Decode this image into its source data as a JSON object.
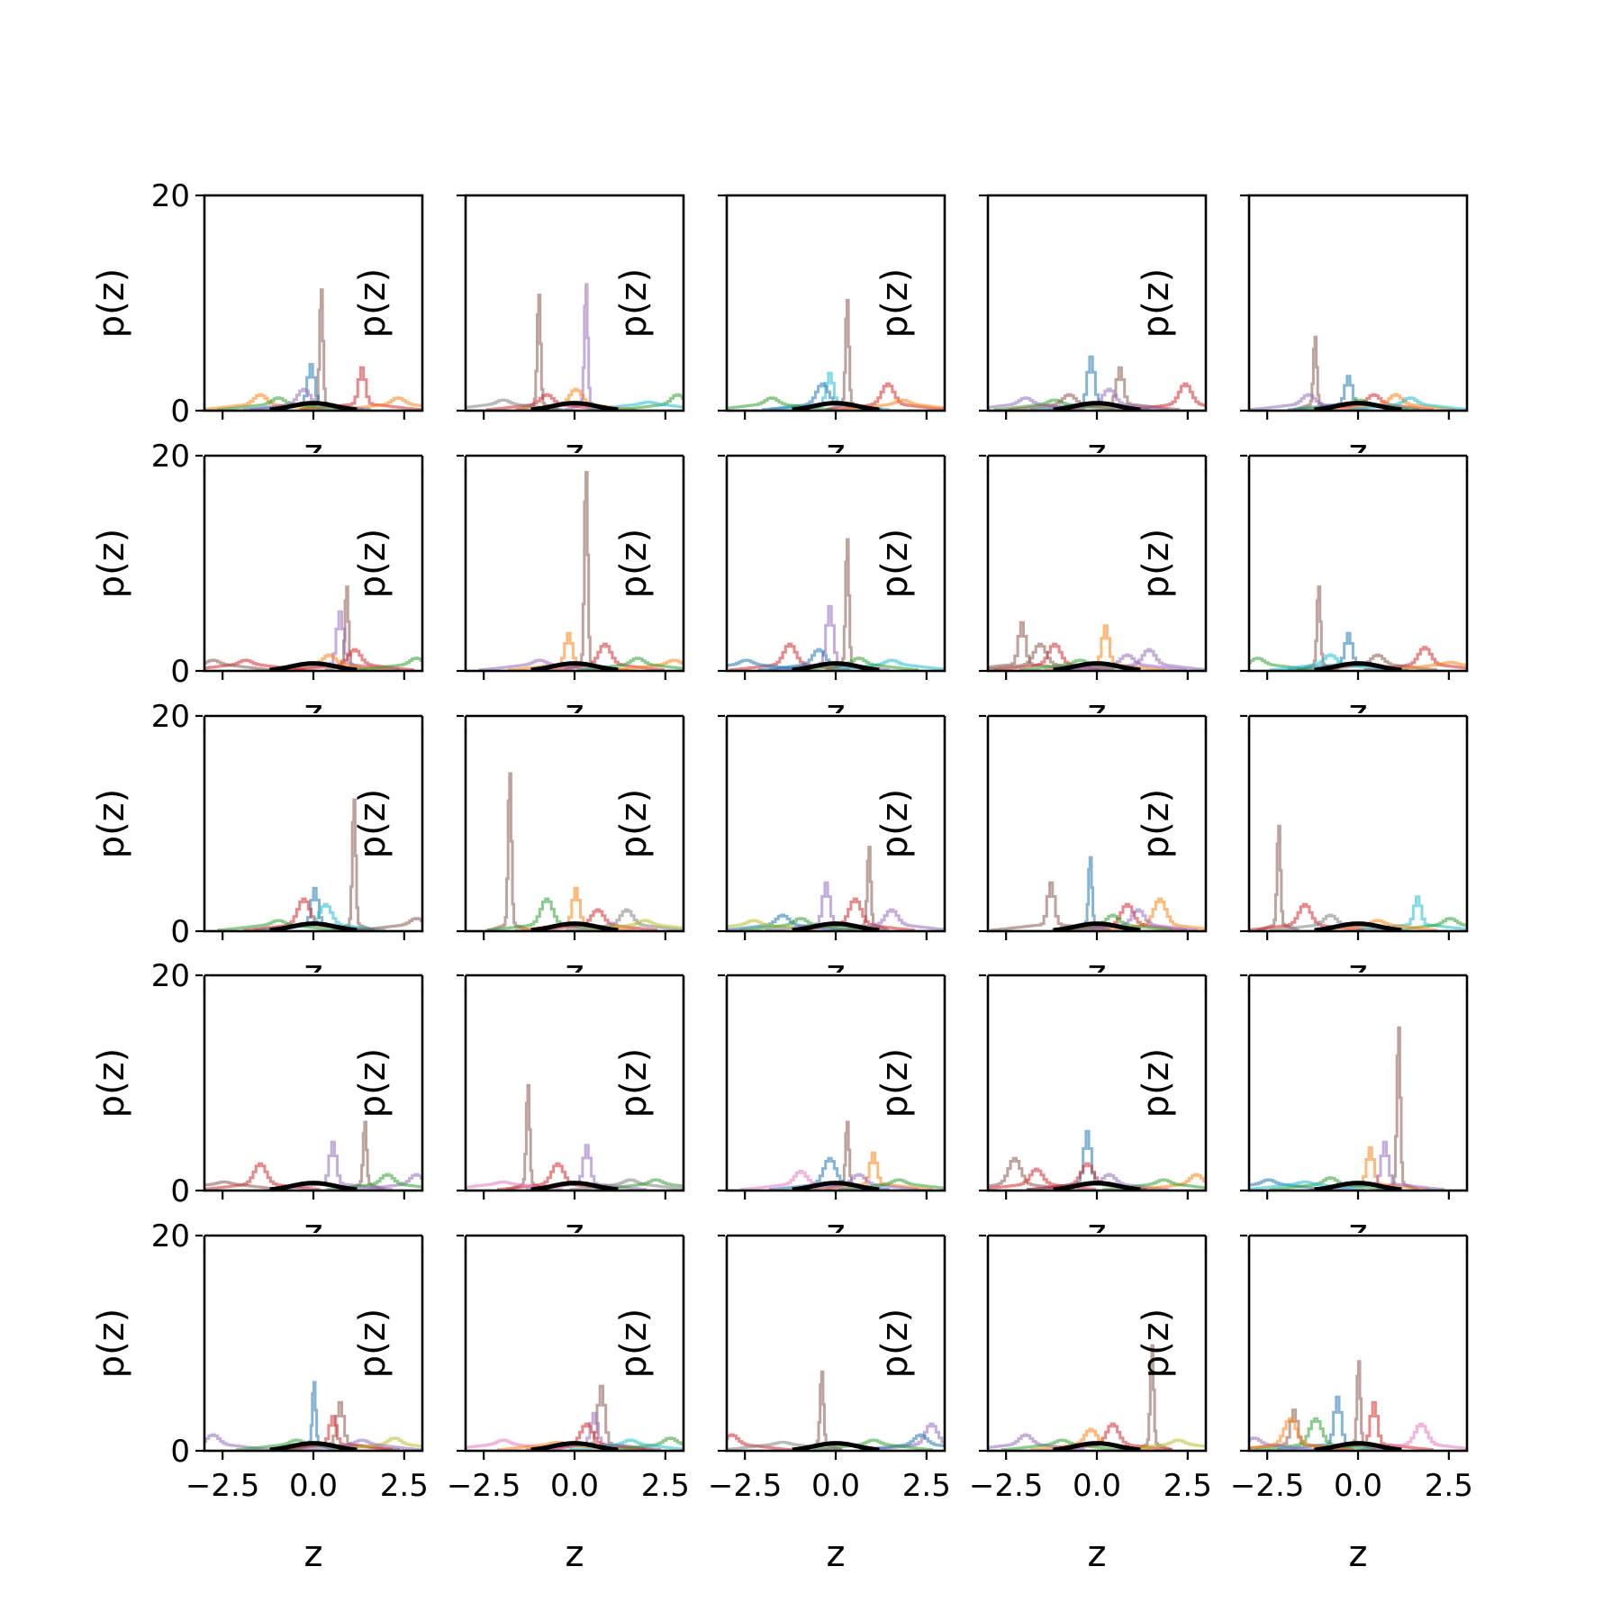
{
  "chart_data": {
    "type": "line",
    "layout": "5x5 grid of step histograms",
    "xlabel": "z",
    "ylabel": "p(z)",
    "xlim": [
      -3.0,
      3.0
    ],
    "ylim": [
      0,
      20
    ],
    "xticks": [
      -2.5,
      0.0,
      2.5
    ],
    "xtick_labels": [
      "−2.5",
      "0.0",
      "2.5"
    ],
    "yticks": [
      0,
      20
    ],
    "ytick_labels": [
      "0",
      "20"
    ],
    "grid": false,
    "legend": "none",
    "palette": [
      "#1f77b4",
      "#ff7f0e",
      "#2ca02c",
      "#d62728",
      "#9467bd",
      "#8c564b",
      "#e377c2",
      "#7f7f7f",
      "#bcbd22",
      "#17becf"
    ],
    "reference_color": "#000000",
    "panels": [
      {
        "peaks": [
          {
            "x": 0.2,
            "h": 11.5,
            "c": 5
          },
          {
            "x": -0.1,
            "h": 4.3,
            "c": 0
          },
          {
            "x": 1.3,
            "h": 4.0,
            "c": 3
          },
          {
            "x": 2.3,
            "h": 1.2,
            "c": 1
          },
          {
            "x": -1.5,
            "h": 1.5,
            "c": 1
          },
          {
            "x": -1.0,
            "h": 1.2,
            "c": 2
          },
          {
            "x": -0.3,
            "h": 2.0,
            "c": 4
          }
        ]
      },
      {
        "peaks": [
          {
            "x": -1.0,
            "h": 11.0,
            "c": 5
          },
          {
            "x": 0.3,
            "h": 12.0,
            "c": 4
          },
          {
            "x": 0.0,
            "h": 2.0,
            "c": 1
          },
          {
            "x": -0.8,
            "h": 1.5,
            "c": 3
          },
          {
            "x": 2.8,
            "h": 1.5,
            "c": 2
          },
          {
            "x": -2.0,
            "h": 1.0,
            "c": 7
          },
          {
            "x": 2.0,
            "h": 0.8,
            "c": 9
          }
        ]
      },
      {
        "peaks": [
          {
            "x": 0.3,
            "h": 10.5,
            "c": 5
          },
          {
            "x": -0.2,
            "h": 3.5,
            "c": 9
          },
          {
            "x": -0.4,
            "h": 2.5,
            "c": 0
          },
          {
            "x": 1.4,
            "h": 2.5,
            "c": 3
          },
          {
            "x": -1.8,
            "h": 1.2,
            "c": 2
          },
          {
            "x": 1.8,
            "h": 1.0,
            "c": 1
          }
        ]
      },
      {
        "peaks": [
          {
            "x": -0.2,
            "h": 5.0,
            "c": 0
          },
          {
            "x": 0.6,
            "h": 4.0,
            "c": 5
          },
          {
            "x": 2.4,
            "h": 2.5,
            "c": 3
          },
          {
            "x": 0.3,
            "h": 2.0,
            "c": 4
          },
          {
            "x": -2.0,
            "h": 1.2,
            "c": 4
          },
          {
            "x": -1.2,
            "h": 1.0,
            "c": 2
          },
          {
            "x": -0.8,
            "h": 1.5,
            "c": 5
          }
        ]
      },
      {
        "peaks": [
          {
            "x": -1.2,
            "h": 7.0,
            "c": 5
          },
          {
            "x": -0.3,
            "h": 3.2,
            "c": 0
          },
          {
            "x": -1.4,
            "h": 1.5,
            "c": 4
          },
          {
            "x": 0.4,
            "h": 1.5,
            "c": 3
          },
          {
            "x": 1.0,
            "h": 1.5,
            "c": 1
          },
          {
            "x": 1.4,
            "h": 1.2,
            "c": 9
          },
          {
            "x": 0.0,
            "h": 1.0,
            "c": 2
          }
        ]
      },
      {
        "peaks": [
          {
            "x": 0.9,
            "h": 8.0,
            "c": 5
          },
          {
            "x": 0.7,
            "h": 5.5,
            "c": 4
          },
          {
            "x": 1.1,
            "h": 2.0,
            "c": 3
          },
          {
            "x": 0.4,
            "h": 1.5,
            "c": 1
          },
          {
            "x": -1.9,
            "h": 1.0,
            "c": 3
          },
          {
            "x": 2.8,
            "h": 1.2,
            "c": 2
          },
          {
            "x": -2.8,
            "h": 1.0,
            "c": 5
          }
        ]
      },
      {
        "peaks": [
          {
            "x": 0.3,
            "h": 19.5,
            "c": 5
          },
          {
            "x": -0.2,
            "h": 3.5,
            "c": 1
          },
          {
            "x": 0.8,
            "h": 2.5,
            "c": 3
          },
          {
            "x": 2.7,
            "h": 1.0,
            "c": 1
          },
          {
            "x": -1.0,
            "h": 1.0,
            "c": 4
          },
          {
            "x": 1.7,
            "h": 1.2,
            "c": 2
          }
        ]
      },
      {
        "peaks": [
          {
            "x": 0.3,
            "h": 12.5,
            "c": 5
          },
          {
            "x": -0.2,
            "h": 6.0,
            "c": 4
          },
          {
            "x": -1.3,
            "h": 2.5,
            "c": 3
          },
          {
            "x": -0.5,
            "h": 2.0,
            "c": 0
          },
          {
            "x": -2.5,
            "h": 1.0,
            "c": 0
          },
          {
            "x": 1.5,
            "h": 1.0,
            "c": 9
          },
          {
            "x": 0.6,
            "h": 1.2,
            "c": 2
          }
        ]
      },
      {
        "peaks": [
          {
            "x": 0.2,
            "h": 4.2,
            "c": 1
          },
          {
            "x": -2.1,
            "h": 4.5,
            "c": 5
          },
          {
            "x": -1.2,
            "h": 2.5,
            "c": 3
          },
          {
            "x": 1.4,
            "h": 2.0,
            "c": 4
          },
          {
            "x": -1.6,
            "h": 2.5,
            "c": 5
          },
          {
            "x": 0.8,
            "h": 1.5,
            "c": 4
          },
          {
            "x": -0.5,
            "h": 1.0,
            "c": 2
          }
        ]
      },
      {
        "peaks": [
          {
            "x": -1.1,
            "h": 8.0,
            "c": 5
          },
          {
            "x": -0.3,
            "h": 3.5,
            "c": 0
          },
          {
            "x": 1.8,
            "h": 2.2,
            "c": 3
          },
          {
            "x": 0.5,
            "h": 1.5,
            "c": 5
          },
          {
            "x": -2.8,
            "h": 1.2,
            "c": 2
          },
          {
            "x": -0.8,
            "h": 1.5,
            "c": 9
          },
          {
            "x": 2.5,
            "h": 0.8,
            "c": 1
          }
        ]
      },
      {
        "peaks": [
          {
            "x": 1.1,
            "h": 12.5,
            "c": 5
          },
          {
            "x": 0.0,
            "h": 4.0,
            "c": 0
          },
          {
            "x": -0.3,
            "h": 3.0,
            "c": 3
          },
          {
            "x": 0.3,
            "h": 2.5,
            "c": 9
          },
          {
            "x": 2.8,
            "h": 1.2,
            "c": 5
          },
          {
            "x": -1.0,
            "h": 1.0,
            "c": 2
          }
        ]
      },
      {
        "peaks": [
          {
            "x": -1.8,
            "h": 15.0,
            "c": 5
          },
          {
            "x": 0.0,
            "h": 4.0,
            "c": 1
          },
          {
            "x": -0.8,
            "h": 3.0,
            "c": 2
          },
          {
            "x": 0.6,
            "h": 2.0,
            "c": 3
          },
          {
            "x": 1.4,
            "h": 2.0,
            "c": 7
          },
          {
            "x": 1.9,
            "h": 1.0,
            "c": 8
          }
        ]
      },
      {
        "peaks": [
          {
            "x": 0.9,
            "h": 8.0,
            "c": 5
          },
          {
            "x": -0.3,
            "h": 4.5,
            "c": 4
          },
          {
            "x": 0.5,
            "h": 3.0,
            "c": 3
          },
          {
            "x": 1.5,
            "h": 2.0,
            "c": 4
          },
          {
            "x": -1.5,
            "h": 1.5,
            "c": 0
          },
          {
            "x": -2.3,
            "h": 1.0,
            "c": 8
          },
          {
            "x": -1.0,
            "h": 1.2,
            "c": 2
          }
        ]
      },
      {
        "peaks": [
          {
            "x": -0.2,
            "h": 7.0,
            "c": 0
          },
          {
            "x": -1.3,
            "h": 4.5,
            "c": 5
          },
          {
            "x": 1.7,
            "h": 3.0,
            "c": 1
          },
          {
            "x": 0.8,
            "h": 2.5,
            "c": 3
          },
          {
            "x": 1.1,
            "h": 2.0,
            "c": 4
          },
          {
            "x": 0.4,
            "h": 1.5,
            "c": 2
          }
        ]
      },
      {
        "peaks": [
          {
            "x": -2.2,
            "h": 10.0,
            "c": 5
          },
          {
            "x": 1.6,
            "h": 3.2,
            "c": 9
          },
          {
            "x": -1.5,
            "h": 2.5,
            "c": 3
          },
          {
            "x": -0.8,
            "h": 1.5,
            "c": 7
          },
          {
            "x": 2.5,
            "h": 1.2,
            "c": 2
          },
          {
            "x": 0.5,
            "h": 1.0,
            "c": 1
          }
        ]
      },
      {
        "peaks": [
          {
            "x": 1.4,
            "h": 6.5,
            "c": 5
          },
          {
            "x": 0.5,
            "h": 4.5,
            "c": 4
          },
          {
            "x": -1.5,
            "h": 2.5,
            "c": 3
          },
          {
            "x": 2.8,
            "h": 1.5,
            "c": 4
          },
          {
            "x": 2.0,
            "h": 1.5,
            "c": 2
          },
          {
            "x": -2.5,
            "h": 0.8,
            "c": 5
          }
        ]
      },
      {
        "peaks": [
          {
            "x": -1.3,
            "h": 10.0,
            "c": 5
          },
          {
            "x": 0.3,
            "h": 4.2,
            "c": 4
          },
          {
            "x": -0.5,
            "h": 2.5,
            "c": 3
          },
          {
            "x": 1.5,
            "h": 1.0,
            "c": 7
          },
          {
            "x": -2.0,
            "h": 0.8,
            "c": 6
          },
          {
            "x": 2.2,
            "h": 1.0,
            "c": 2
          }
        ]
      },
      {
        "peaks": [
          {
            "x": 0.3,
            "h": 6.5,
            "c": 5
          },
          {
            "x": 1.0,
            "h": 3.5,
            "c": 1
          },
          {
            "x": -0.2,
            "h": 3.0,
            "c": 0
          },
          {
            "x": -1.0,
            "h": 1.8,
            "c": 6
          },
          {
            "x": 0.6,
            "h": 1.5,
            "c": 4
          },
          {
            "x": 1.7,
            "h": 1.0,
            "c": 2
          }
        ]
      },
      {
        "peaks": [
          {
            "x": -0.3,
            "h": 5.5,
            "c": 0
          },
          {
            "x": -2.3,
            "h": 3.0,
            "c": 5
          },
          {
            "x": -1.7,
            "h": 2.0,
            "c": 3
          },
          {
            "x": 0.3,
            "h": 1.5,
            "c": 4
          },
          {
            "x": 2.7,
            "h": 1.5,
            "c": 1
          },
          {
            "x": 1.8,
            "h": 1.0,
            "c": 2
          },
          {
            "x": -0.3,
            "h": 2.5,
            "c": 3
          }
        ]
      },
      {
        "peaks": [
          {
            "x": 1.1,
            "h": 15.5,
            "c": 5
          },
          {
            "x": 0.3,
            "h": 4.0,
            "c": 1
          },
          {
            "x": 0.7,
            "h": 4.5,
            "c": 4
          },
          {
            "x": -2.5,
            "h": 1.0,
            "c": 0
          },
          {
            "x": -0.8,
            "h": 1.2,
            "c": 2
          },
          {
            "x": -1.5,
            "h": 0.8,
            "c": 9
          }
        ]
      },
      {
        "peaks": [
          {
            "x": 0.0,
            "h": 6.5,
            "c": 0
          },
          {
            "x": 0.7,
            "h": 4.5,
            "c": 5
          },
          {
            "x": 0.5,
            "h": 3.2,
            "c": 3
          },
          {
            "x": -2.8,
            "h": 1.5,
            "c": 4
          },
          {
            "x": 2.2,
            "h": 1.2,
            "c": 8
          },
          {
            "x": -0.5,
            "h": 1.0,
            "c": 2
          },
          {
            "x": 1.3,
            "h": 1.0,
            "c": 4
          }
        ]
      },
      {
        "peaks": [
          {
            "x": 0.7,
            "h": 6.0,
            "c": 5
          },
          {
            "x": 0.5,
            "h": 3.5,
            "c": 4
          },
          {
            "x": 0.3,
            "h": 2.5,
            "c": 3
          },
          {
            "x": -2.0,
            "h": 1.0,
            "c": 6
          },
          {
            "x": 2.6,
            "h": 1.2,
            "c": 2
          },
          {
            "x": 1.5,
            "h": 1.0,
            "c": 9
          },
          {
            "x": -0.5,
            "h": 0.8,
            "c": 1
          }
        ]
      },
      {
        "peaks": [
          {
            "x": -0.4,
            "h": 7.5,
            "c": 5
          },
          {
            "x": 2.6,
            "h": 2.5,
            "c": 4
          },
          {
            "x": -2.9,
            "h": 1.5,
            "c": 3
          },
          {
            "x": 2.3,
            "h": 1.5,
            "c": 0
          },
          {
            "x": 1.0,
            "h": 1.0,
            "c": 2
          },
          {
            "x": -1.5,
            "h": 0.8,
            "c": 7
          }
        ]
      },
      {
        "peaks": [
          {
            "x": 1.5,
            "h": 10.0,
            "c": 5
          },
          {
            "x": 0.4,
            "h": 2.5,
            "c": 3
          },
          {
            "x": -0.2,
            "h": 2.0,
            "c": 1
          },
          {
            "x": -2.0,
            "h": 1.5,
            "c": 4
          },
          {
            "x": 2.2,
            "h": 1.0,
            "c": 8
          },
          {
            "x": -1.0,
            "h": 1.0,
            "c": 2
          }
        ]
      },
      {
        "peaks": [
          {
            "x": 0.0,
            "h": 8.5,
            "c": 5
          },
          {
            "x": -0.6,
            "h": 5.0,
            "c": 0
          },
          {
            "x": 0.4,
            "h": 4.5,
            "c": 3
          },
          {
            "x": -1.8,
            "h": 3.8,
            "c": 5
          },
          {
            "x": 1.7,
            "h": 2.5,
            "c": 6
          },
          {
            "x": -1.2,
            "h": 3.0,
            "c": 2
          },
          {
            "x": -2.9,
            "h": 1.2,
            "c": 4
          },
          {
            "x": -1.9,
            "h": 3.0,
            "c": 1
          }
        ]
      }
    ]
  }
}
